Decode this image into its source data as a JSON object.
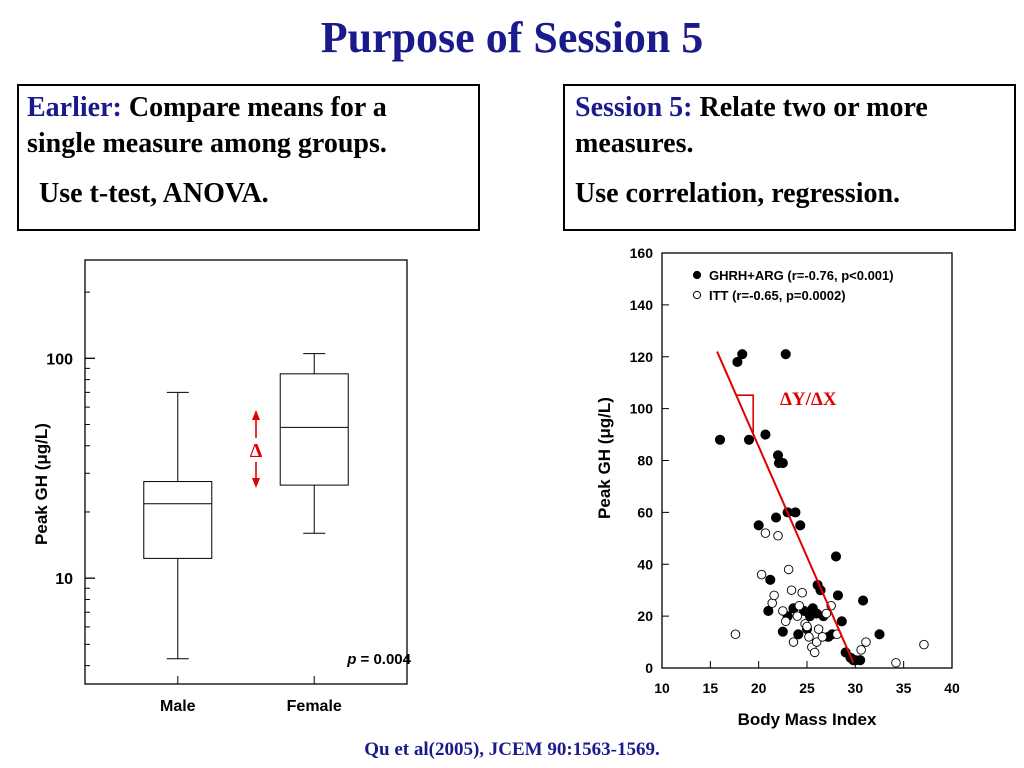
{
  "slide": {
    "title": "Purpose of Session 5",
    "left_box": {
      "label": "Earlier:",
      "line1_rest": " Compare means for a",
      "line2": "single measure among groups.",
      "line3": "Use t-test, ANOVA."
    },
    "right_box": {
      "label": "Session 5:",
      "line1_rest": " Relate two or more",
      "line2": "measures.",
      "line3": "Use correlation, regression."
    },
    "citation": "Qu et al(2005), JCEM 90:1563-1569."
  },
  "chart_data": [
    {
      "type": "box",
      "ylabel": "Peak GH (μg/L)",
      "yscale": "log",
      "ylim": [
        3.3,
        280
      ],
      "y_ticks": [
        10,
        100
      ],
      "y_tick_labels": [
        "10",
        "100"
      ],
      "categories": [
        "Male",
        "Female"
      ],
      "boxes": [
        {
          "whisker_low": 4.3,
          "q1": 12.3,
          "median": 21.8,
          "q3": 27.5,
          "whisker_high": 70
        },
        {
          "whisker_low": 16,
          "q1": 26.5,
          "median": 48.5,
          "q3": 85,
          "whisker_high": 105
        }
      ],
      "annotation_p_label": "p",
      "annotation_p_value": " = 0.004",
      "delta_label": "Δ",
      "colors": {
        "axis": "#000000",
        "delta": "#e00000"
      }
    },
    {
      "type": "scatter",
      "xlabel": "Body Mass Index",
      "ylabel": "Peak GH (μg/L)",
      "xlim": [
        10,
        40
      ],
      "ylim": [
        0,
        160
      ],
      "x_ticks": [
        10,
        15,
        20,
        25,
        30,
        35,
        40
      ],
      "y_ticks": [
        0,
        20,
        40,
        60,
        80,
        100,
        120,
        140,
        160
      ],
      "legend_position": "top-right",
      "series": [
        {
          "name": "GHRH+ARG (r=-0.76, p<0.001)",
          "marker": "filled",
          "points": [
            [
              16,
              88
            ],
            [
              17.8,
              118
            ],
            [
              18.3,
              121
            ],
            [
              19,
              88
            ],
            [
              20.7,
              90
            ],
            [
              22.8,
              121
            ],
            [
              21.8,
              58
            ],
            [
              22,
              82
            ],
            [
              22.1,
              79
            ],
            [
              22.5,
              79
            ],
            [
              23,
              60
            ],
            [
              23.8,
              60
            ],
            [
              24.3,
              55
            ],
            [
              20,
              55
            ],
            [
              21.2,
              34
            ],
            [
              21,
              22
            ],
            [
              22.5,
              14
            ],
            [
              23,
              20
            ],
            [
              23.6,
              23
            ],
            [
              24.1,
              13
            ],
            [
              24.7,
              22
            ],
            [
              25,
              15
            ],
            [
              25.3,
              20
            ],
            [
              25.6,
              23
            ],
            [
              26,
              21
            ],
            [
              26.4,
              30
            ],
            [
              26.7,
              20
            ],
            [
              27.2,
              12
            ],
            [
              27.6,
              13
            ],
            [
              28,
              43
            ],
            [
              28.2,
              28
            ],
            [
              28.6,
              18
            ],
            [
              29,
              6
            ],
            [
              29.5,
              4
            ],
            [
              29.8,
              3
            ],
            [
              30,
              3
            ],
            [
              30.5,
              3
            ],
            [
              30.8,
              26
            ],
            [
              32.5,
              13
            ],
            [
              26.1,
              32
            ]
          ]
        },
        {
          "name": "ITT (r=-0.65, p=0.0002)",
          "marker": "open",
          "points": [
            [
              17.6,
              13
            ],
            [
              20.3,
              36
            ],
            [
              20.7,
              52
            ],
            [
              21.4,
              25
            ],
            [
              21.6,
              28
            ],
            [
              22,
              51
            ],
            [
              22.5,
              22
            ],
            [
              22.8,
              18
            ],
            [
              23.1,
              38
            ],
            [
              23.4,
              30
            ],
            [
              23.6,
              10
            ],
            [
              24,
              20
            ],
            [
              24.2,
              24
            ],
            [
              24.5,
              29
            ],
            [
              24.8,
              17
            ],
            [
              25,
              16
            ],
            [
              25.2,
              12
            ],
            [
              25.5,
              8
            ],
            [
              25.8,
              6
            ],
            [
              26,
              10
            ],
            [
              26.2,
              15
            ],
            [
              26.6,
              12
            ],
            [
              27,
              21
            ],
            [
              27.5,
              24
            ],
            [
              28.1,
              13
            ],
            [
              30.6,
              7
            ],
            [
              31.1,
              10
            ],
            [
              34.2,
              2
            ],
            [
              37.1,
              9
            ]
          ]
        }
      ],
      "regression_line": {
        "x": [
          15.7,
          29.8
        ],
        "y": [
          122,
          2
        ]
      },
      "slope_label": "ΔY/ΔX",
      "colors": {
        "filled": "#000000",
        "open": "#ffffff",
        "line": "#e00000",
        "slope_label": "#e00000"
      }
    }
  ]
}
